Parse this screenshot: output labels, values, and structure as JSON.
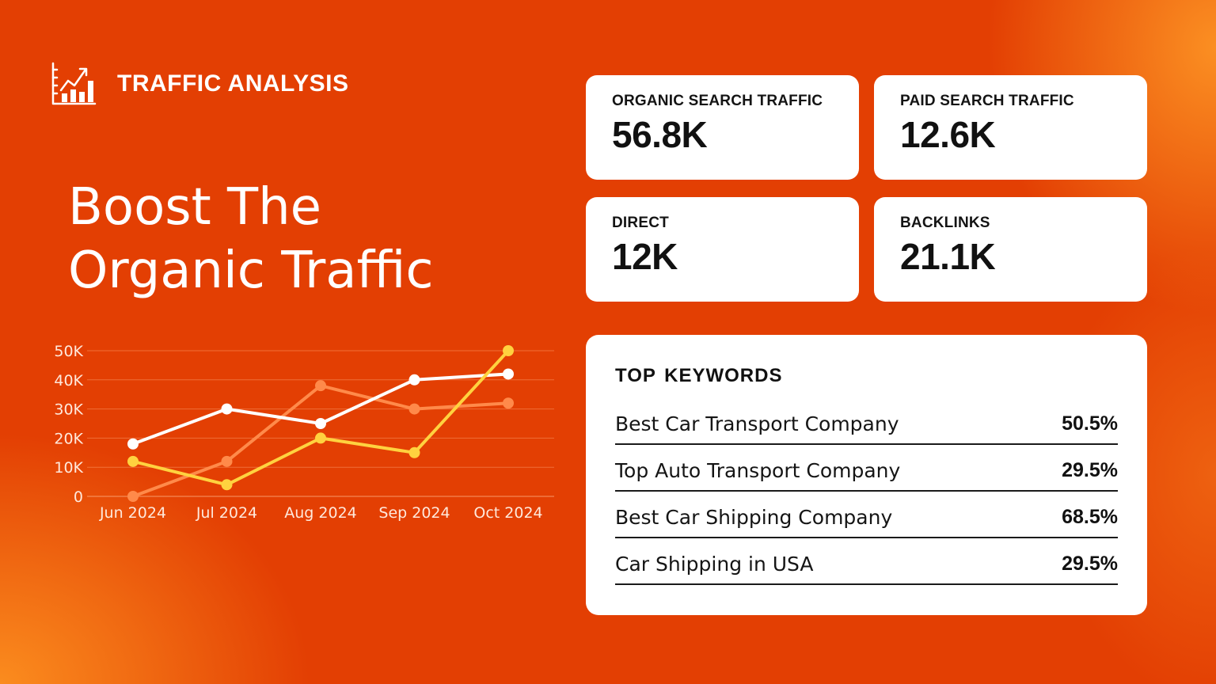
{
  "brand": {
    "title": "TRAFFIC ANALYSIS",
    "icon": "bar-line-chart-icon"
  },
  "headline": {
    "line1": "Boost The",
    "line2": "Organic Traffic"
  },
  "stats": [
    {
      "label": "ORGANIC SEARCH TRAFFIC",
      "value": "56.8K"
    },
    {
      "label": "PAID SEARCH TRAFFIC",
      "value": "12.6K"
    },
    {
      "label": "DIRECT",
      "value": "12K"
    },
    {
      "label": "BACKLINKS",
      "value": "21.1K"
    }
  ],
  "keywords": {
    "title": "TOP KEYWORDS",
    "items": [
      {
        "name": "Best Car Transport Company",
        "pct": "50.5%"
      },
      {
        "name": "Top Auto Transport Company",
        "pct": "29.5%"
      },
      {
        "name": "Best Car Shipping Company",
        "pct": "68.5%"
      },
      {
        "name": "Car Shipping in USA",
        "pct": "29.5%"
      }
    ]
  },
  "colors": {
    "background": "#e33f03",
    "accent_light": "#fb8c1e",
    "card": "#ffffff"
  },
  "chart_data": {
    "type": "line",
    "categories": [
      "Jun 2024",
      "Jul 2024",
      "Aug 2024",
      "Sep 2024",
      "Oct 2024"
    ],
    "ylim": [
      0,
      50000
    ],
    "yticks": [
      0,
      10000,
      20000,
      30000,
      40000,
      50000
    ],
    "ytick_labels": [
      "0",
      "10K",
      "20K",
      "30K",
      "40K",
      "50K"
    ],
    "grid": true,
    "series": [
      {
        "values": [
          0,
          12000,
          38000,
          30000,
          32000
        ],
        "color": "#ff8a4a"
      },
      {
        "values": [
          18000,
          30000,
          25000,
          40000,
          42000
        ],
        "color": "#ffffff"
      },
      {
        "values": [
          12000,
          4000,
          20000,
          15000,
          50000
        ],
        "color": "#ffd23f"
      }
    ]
  }
}
